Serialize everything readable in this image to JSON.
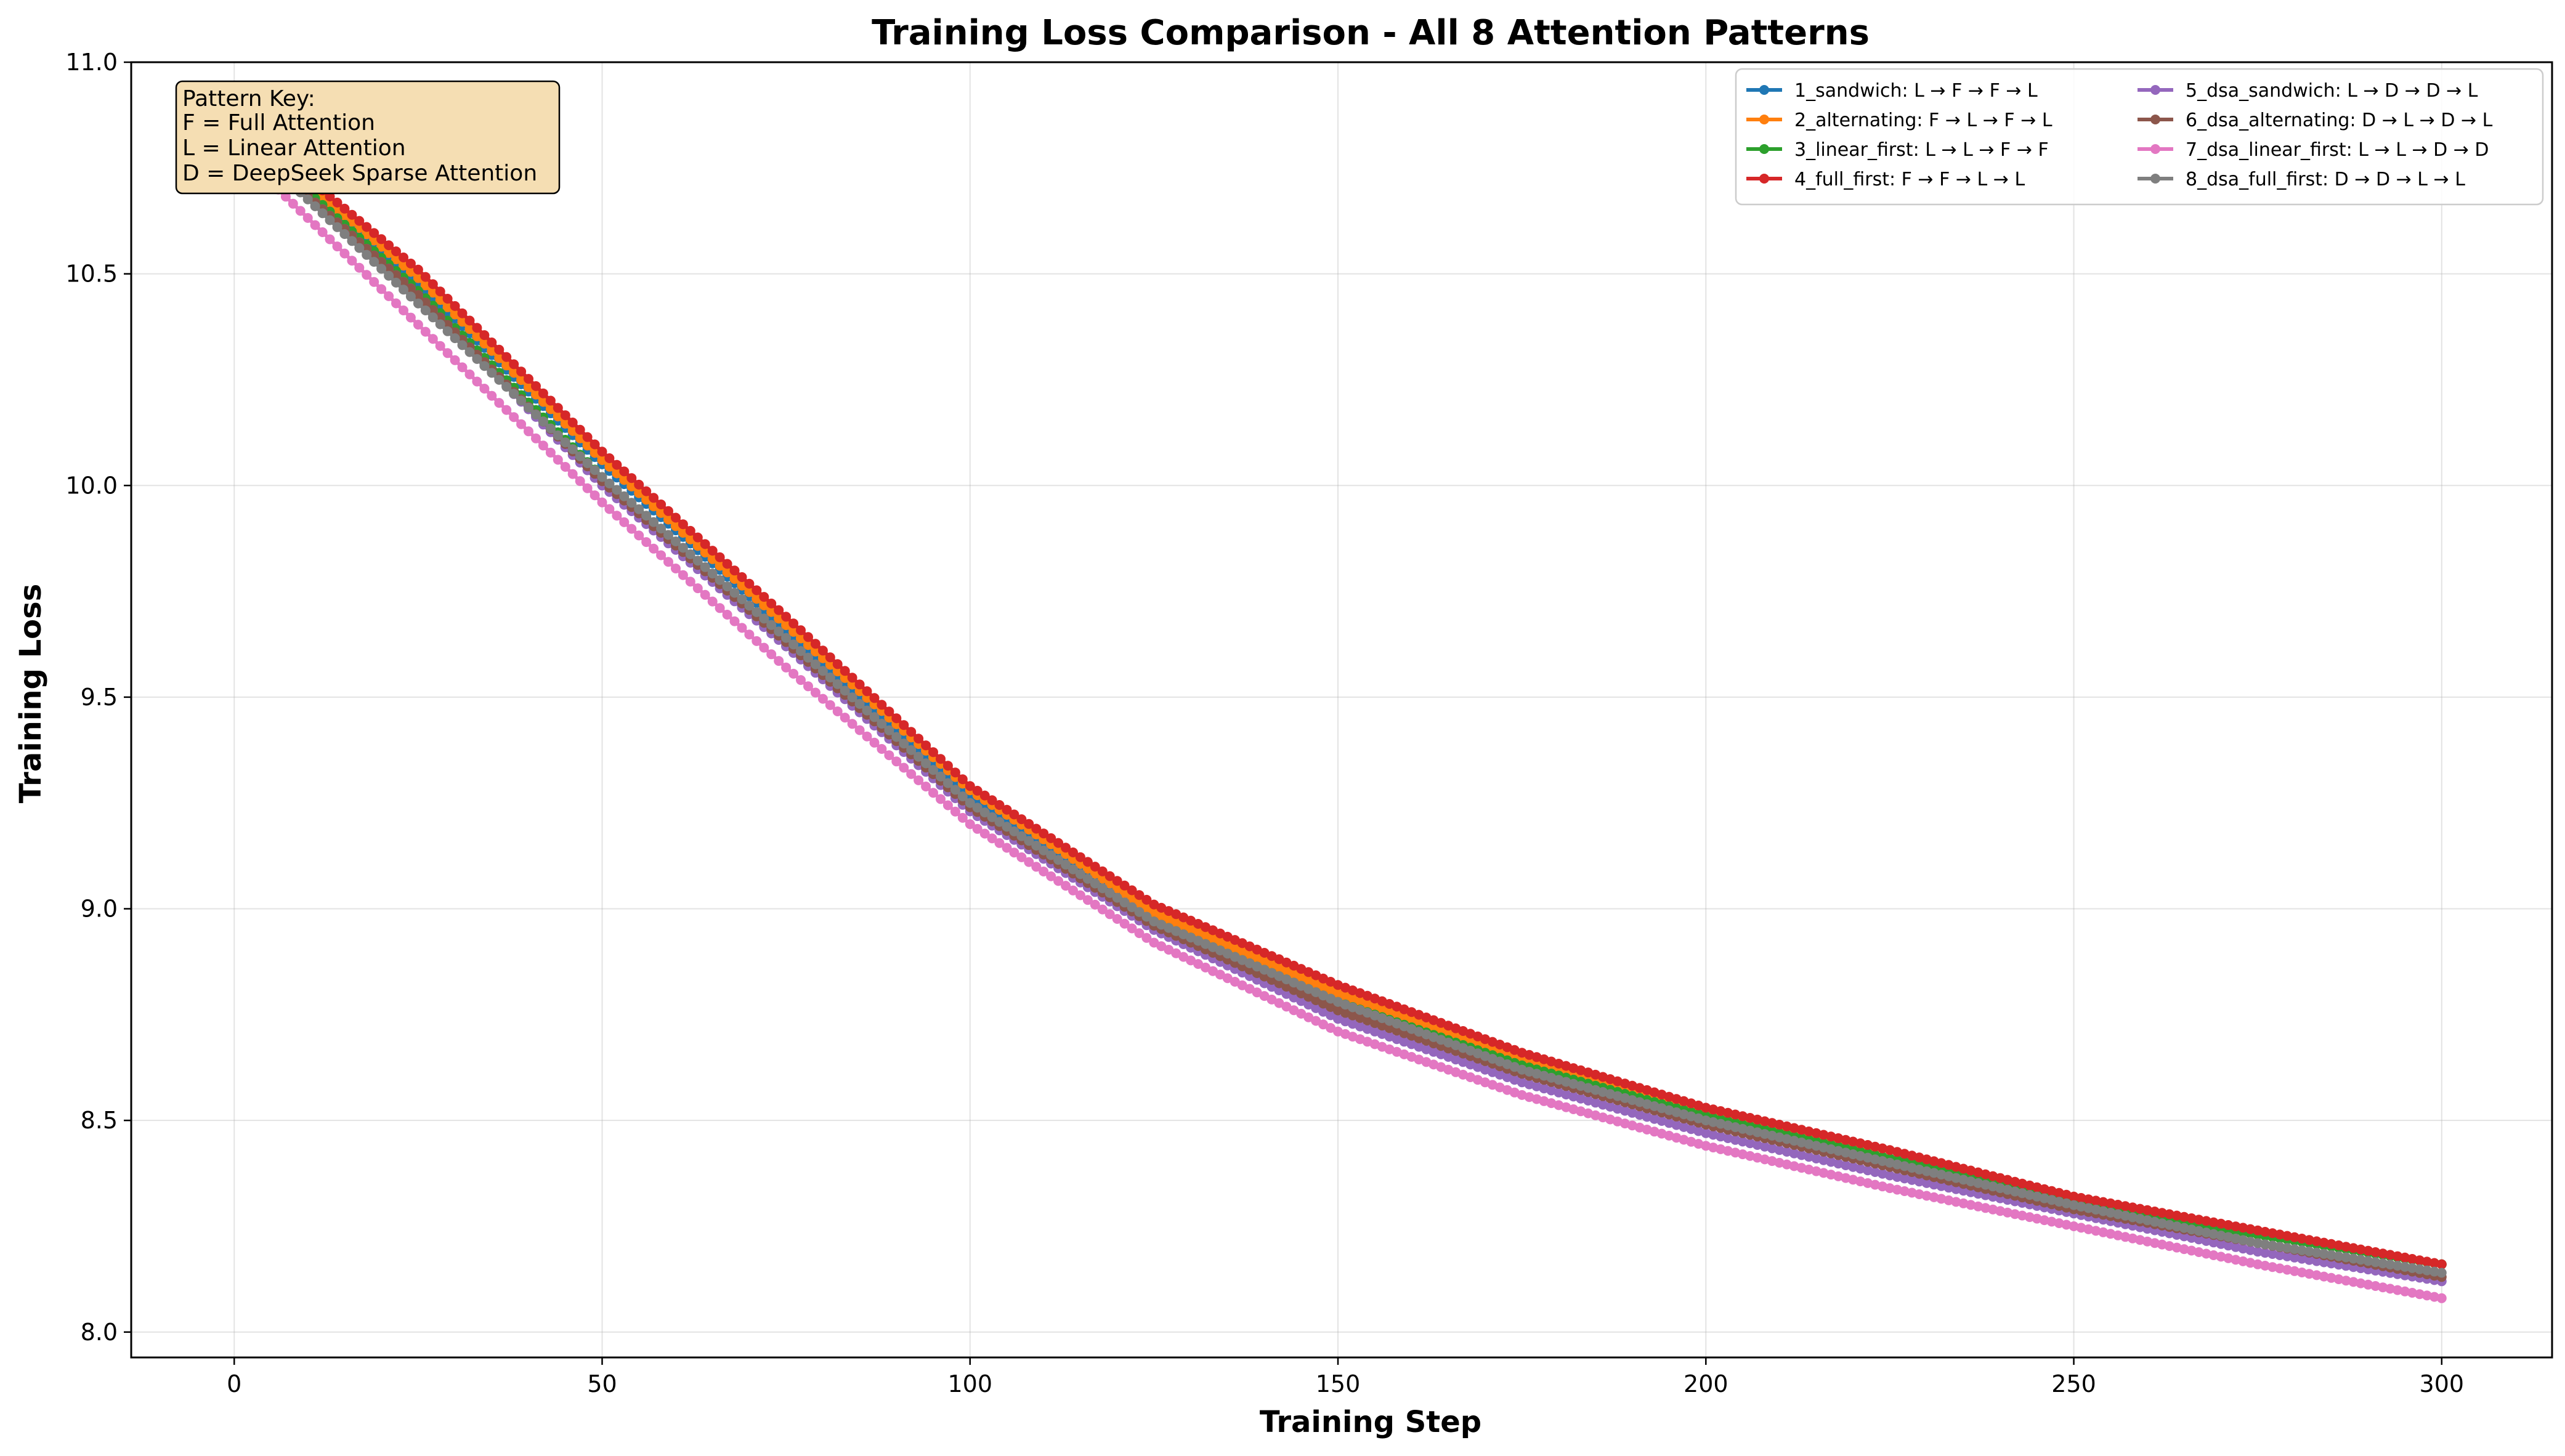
{
  "chart_data": {
    "type": "line",
    "title": "Training Loss Comparison - All 8 Attention Patterns",
    "xlabel": "Training Step",
    "ylabel": "Training Loss",
    "xlim": [
      -14,
      315
    ],
    "ylim": [
      7.94,
      11.0
    ],
    "xticks": [
      0,
      50,
      100,
      150,
      200,
      250,
      300
    ],
    "yticks": [
      8.0,
      8.5,
      9.0,
      9.5,
      10.0,
      10.5,
      11.0
    ],
    "xtick_labels": [
      "0",
      "50",
      "100",
      "150",
      "200",
      "250",
      "300"
    ],
    "ytick_labels": [
      "8.0",
      "8.5",
      "9.0",
      "9.5",
      "10.0",
      "10.5",
      "11.0"
    ],
    "grid": true,
    "legend_position": "top-right",
    "legend_columns": 2,
    "marker": "circle",
    "step_count": 300,
    "series": [
      {
        "name": "1_sandwich: L → F → F → L",
        "color": "#1f77b4",
        "x": [
          0,
          25,
          50,
          75,
          100,
          125,
          150,
          175,
          200,
          225,
          250,
          275,
          300
        ],
        "values": [
          10.85,
          10.48,
          10.05,
          9.66,
          9.27,
          8.98,
          8.79,
          8.63,
          8.51,
          8.41,
          8.31,
          8.23,
          8.16
        ]
      },
      {
        "name": "2_alternating: F → L → F → L",
        "color": "#ff7f0e",
        "x": [
          0,
          25,
          50,
          75,
          100,
          125,
          150,
          175,
          200,
          225,
          250,
          275,
          300
        ],
        "values": [
          10.86,
          10.49,
          10.06,
          9.67,
          9.28,
          8.99,
          8.8,
          8.64,
          8.52,
          8.41,
          8.31,
          8.23,
          8.16
        ]
      },
      {
        "name": "3_linear_first: L → L → F → F",
        "color": "#2ca02c",
        "x": [
          0,
          25,
          50,
          75,
          100,
          125,
          150,
          175,
          200,
          225,
          250,
          275,
          300
        ],
        "values": [
          10.85,
          10.46,
          10.02,
          9.62,
          9.24,
          8.97,
          8.78,
          8.63,
          8.51,
          8.41,
          8.31,
          8.23,
          8.16
        ]
      },
      {
        "name": "4_full_first: F → F → L → L",
        "color": "#d62728",
        "x": [
          0,
          25,
          50,
          75,
          100,
          125,
          150,
          175,
          200,
          225,
          250,
          275,
          300
        ],
        "values": [
          10.87,
          10.51,
          10.08,
          9.69,
          9.29,
          9.01,
          8.82,
          8.66,
          8.53,
          8.43,
          8.32,
          8.24,
          8.16
        ]
      },
      {
        "name": "5_dsa_sandwich: L → D → D → L",
        "color": "#9467bd",
        "x": [
          0,
          25,
          50,
          75,
          100,
          125,
          150,
          175,
          200,
          225,
          250,
          275,
          300
        ],
        "values": [
          10.84,
          10.45,
          10.0,
          9.62,
          9.23,
          8.95,
          8.74,
          8.59,
          8.47,
          8.37,
          8.28,
          8.19,
          8.12
        ]
      },
      {
        "name": "6_dsa_alternating: D → L → D → L",
        "color": "#8c564b",
        "x": [
          0,
          25,
          50,
          75,
          100,
          125,
          150,
          175,
          200,
          225,
          250,
          275,
          300
        ],
        "values": [
          10.84,
          10.45,
          10.01,
          9.63,
          9.24,
          8.96,
          8.76,
          8.61,
          8.49,
          8.39,
          8.29,
          8.21,
          8.13
        ]
      },
      {
        "name": "7_dsa_linear_first: L → L → D → D",
        "color": "#e377c2",
        "x": [
          0,
          25,
          50,
          75,
          100,
          125,
          150,
          175,
          200,
          225,
          250,
          275,
          300
        ],
        "values": [
          10.8,
          10.38,
          9.96,
          9.57,
          9.2,
          8.92,
          8.71,
          8.56,
          8.44,
          8.34,
          8.25,
          8.16,
          8.08
        ]
      },
      {
        "name": "8_dsa_full_first: D → D → L → L",
        "color": "#7f7f7f",
        "x": [
          0,
          25,
          50,
          75,
          100,
          125,
          150,
          175,
          200,
          225,
          250,
          275,
          300
        ],
        "values": [
          10.84,
          10.43,
          10.02,
          9.64,
          9.25,
          8.97,
          8.78,
          8.62,
          8.5,
          8.4,
          8.3,
          8.21,
          8.14
        ]
      }
    ],
    "annotation": {
      "title": "Pattern Key:",
      "lines": [
        "F = Full Attention",
        "L = Linear Attention",
        "D = DeepSeek Sparse Attention"
      ],
      "position": "top-left",
      "background": "#f5deb3"
    }
  }
}
